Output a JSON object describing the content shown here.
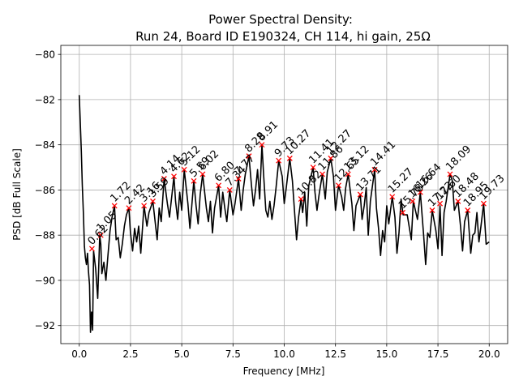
{
  "chart_data": {
    "type": "line",
    "title": "Power Spectral Density:",
    "subtitle": "Run 24, Board ID E190324, CH 114, hi gain, 25Ω",
    "xlabel": "Frequency [MHz]",
    "ylabel": "PSD [dB Full Scale]",
    "xlim": [
      -0.9,
      20.9
    ],
    "ylim": [
      -92.8,
      -79.6
    ],
    "xticks": [
      0.0,
      2.5,
      5.0,
      7.5,
      10.0,
      12.5,
      15.0,
      17.5,
      20.0
    ],
    "xtick_labels": [
      "0.0",
      "2.5",
      "5.0",
      "7.5",
      "10.0",
      "12.5",
      "15.0",
      "17.5",
      "20.0"
    ],
    "yticks": [
      -92,
      -90,
      -88,
      -86,
      -84,
      -82,
      -80
    ],
    "ytick_labels": [
      "−92",
      "−90",
      "−88",
      "−86",
      "−84",
      "−82",
      "−80"
    ],
    "grid": true,
    "series_color": "#000000",
    "marker_color": "#ff0000",
    "series": [
      {
        "x": [
          0.0,
          0.05,
          0.1,
          0.15,
          0.2,
          0.25,
          0.3,
          0.35,
          0.4,
          0.45,
          0.5,
          0.55,
          0.6,
          0.65,
          0.7,
          0.8,
          0.9,
          1.0,
          1.05,
          1.1,
          1.2,
          1.3,
          1.4,
          1.5,
          1.6,
          1.72,
          1.8,
          1.9,
          2.0,
          2.1,
          2.2,
          2.3,
          2.42,
          2.5,
          2.6,
          2.7,
          2.8,
          2.9,
          3.0,
          3.16,
          3.3,
          3.4,
          3.59,
          3.7,
          3.8,
          3.9,
          4.0,
          4.14,
          4.3,
          4.4,
          4.62,
          4.7,
          4.8,
          4.9,
          5.0,
          5.12,
          5.3,
          5.4,
          5.59,
          5.7,
          5.8,
          5.9,
          6.02,
          6.2,
          6.3,
          6.4,
          6.5,
          6.6,
          6.8,
          6.9,
          7.0,
          7.1,
          7.2,
          7.34,
          7.5,
          7.6,
          7.77,
          7.9,
          8.0,
          8.1,
          8.28,
          8.4,
          8.5,
          8.6,
          8.7,
          8.8,
          8.91,
          9.0,
          9.1,
          9.2,
          9.3,
          9.4,
          9.5,
          9.6,
          9.73,
          9.9,
          10.0,
          10.1,
          10.27,
          10.4,
          10.5,
          10.6,
          10.7,
          10.82,
          10.9,
          11.0,
          11.1,
          11.2,
          11.41,
          11.5,
          11.6,
          11.7,
          11.86,
          12.0,
          12.1,
          12.27,
          12.4,
          12.5,
          12.65,
          12.8,
          12.9,
          13.0,
          13.12,
          13.3,
          13.4,
          13.5,
          13.71,
          13.8,
          13.9,
          14.0,
          14.1,
          14.2,
          14.41,
          14.5,
          14.6,
          14.7,
          14.8,
          14.9,
          15.0,
          15.1,
          15.27,
          15.4,
          15.5,
          15.6,
          15.7,
          15.8,
          16.0,
          16.2,
          16.3,
          16.5,
          16.64,
          16.8,
          16.9,
          17.0,
          17.1,
          17.22,
          17.4,
          17.5,
          17.6,
          17.7,
          17.8,
          17.9,
          18.09,
          18.2,
          18.3,
          18.48,
          18.6,
          18.7,
          18.8,
          18.95,
          19.1,
          19.2,
          19.3,
          19.4,
          19.5,
          19.6,
          19.73,
          19.85,
          20.0
        ],
        "y": [
          -81.8,
          -83.0,
          -84.3,
          -85.8,
          -87.0,
          -88.5,
          -89.0,
          -89.3,
          -88.8,
          -89.6,
          -90.2,
          -92.3,
          -91.4,
          -92.2,
          -88.7,
          -89.5,
          -90.8,
          -88.0,
          -88.4,
          -89.7,
          -89.2,
          -90.0,
          -88.9,
          -87.8,
          -87.2,
          -86.7,
          -88.2,
          -88.1,
          -89.0,
          -88.4,
          -87.6,
          -87.1,
          -86.8,
          -87.9,
          -88.7,
          -87.7,
          -88.3,
          -87.6,
          -88.8,
          -86.7,
          -87.6,
          -87.0,
          -86.5,
          -87.4,
          -88.2,
          -86.8,
          -87.4,
          -85.5,
          -86.6,
          -87.2,
          -85.4,
          -86.5,
          -87.3,
          -86.1,
          -86.9,
          -85.1,
          -86.6,
          -87.7,
          -85.6,
          -86.7,
          -87.5,
          -86.2,
          -85.3,
          -86.8,
          -87.4,
          -86.5,
          -87.9,
          -86.8,
          -85.8,
          -87.2,
          -86.1,
          -86.8,
          -87.4,
          -86.0,
          -87.1,
          -86.6,
          -85.5,
          -86.9,
          -86.0,
          -85.3,
          -84.5,
          -85.8,
          -86.7,
          -86.0,
          -85.1,
          -86.4,
          -84.0,
          -85.4,
          -86.9,
          -87.2,
          -86.5,
          -87.3,
          -86.7,
          -85.9,
          -84.7,
          -85.4,
          -86.6,
          -85.9,
          -84.6,
          -85.6,
          -86.9,
          -88.2,
          -87.2,
          -86.4,
          -87.0,
          -86.1,
          -87.6,
          -85.8,
          -85.0,
          -86.1,
          -86.9,
          -86.2,
          -85.3,
          -86.4,
          -85.2,
          -84.6,
          -85.4,
          -86.9,
          -85.8,
          -86.3,
          -86.9,
          -85.9,
          -85.3,
          -86.6,
          -87.8,
          -86.7,
          -86.2,
          -87.3,
          -86.7,
          -85.9,
          -88.0,
          -86.5,
          -85.1,
          -86.8,
          -87.7,
          -88.9,
          -87.8,
          -88.3,
          -86.7,
          -87.5,
          -86.3,
          -87.2,
          -88.8,
          -87.9,
          -86.4,
          -87.1,
          -87.1,
          -88.2,
          -86.5,
          -87.3,
          -86.1,
          -88.0,
          -89.3,
          -87.9,
          -88.1,
          -86.9,
          -87.8,
          -88.6,
          -86.7,
          -88.9,
          -87.0,
          -86.5,
          -85.3,
          -85.6,
          -86.9,
          -86.5,
          -87.6,
          -88.7,
          -87.4,
          -86.9,
          -88.8,
          -88.0,
          -87.9,
          -87.0,
          -88.3,
          -87.6,
          -86.6,
          -88.4,
          -88.3
        ]
      }
    ],
    "peaks": [
      {
        "x": 0.62,
        "y": -88.6,
        "label": "0.62"
      },
      {
        "x": 1.05,
        "y": -88.0,
        "label": "1.05"
      },
      {
        "x": 1.72,
        "y": -86.7,
        "label": "1.72"
      },
      {
        "x": 2.42,
        "y": -86.8,
        "label": "2.42"
      },
      {
        "x": 3.16,
        "y": -86.7,
        "label": "3.16"
      },
      {
        "x": 3.59,
        "y": -86.5,
        "label": "3.59"
      },
      {
        "x": 4.14,
        "y": -85.5,
        "label": "4.14"
      },
      {
        "x": 4.62,
        "y": -85.4,
        "label": "4.62"
      },
      {
        "x": 5.12,
        "y": -85.1,
        "label": "5.12"
      },
      {
        "x": 5.59,
        "y": -85.6,
        "label": "5.59"
      },
      {
        "x": 6.02,
        "y": -85.3,
        "label": "6.02"
      },
      {
        "x": 6.8,
        "y": -85.8,
        "label": "6.80"
      },
      {
        "x": 7.34,
        "y": -86.0,
        "label": "7.34"
      },
      {
        "x": 7.77,
        "y": -85.5,
        "label": "7.77"
      },
      {
        "x": 8.28,
        "y": -84.5,
        "label": "8.28"
      },
      {
        "x": 8.91,
        "y": -84.0,
        "label": "8.91"
      },
      {
        "x": 9.73,
        "y": -84.7,
        "label": "9.73"
      },
      {
        "x": 10.27,
        "y": -84.6,
        "label": "10.27"
      },
      {
        "x": 10.82,
        "y": -86.4,
        "label": "10.82"
      },
      {
        "x": 11.41,
        "y": -85.0,
        "label": "11.41"
      },
      {
        "x": 11.86,
        "y": -85.3,
        "label": "11.86"
      },
      {
        "x": 12.27,
        "y": -84.6,
        "label": "12.27"
      },
      {
        "x": 12.65,
        "y": -85.8,
        "label": "12.65"
      },
      {
        "x": 13.12,
        "y": -85.3,
        "label": "13.12"
      },
      {
        "x": 13.71,
        "y": -86.2,
        "label": "13.71"
      },
      {
        "x": 14.41,
        "y": -85.1,
        "label": "14.41"
      },
      {
        "x": 15.27,
        "y": -86.3,
        "label": "15.27"
      },
      {
        "x": 15.78,
        "y": -87.0,
        "label": "15.78"
      },
      {
        "x": 16.26,
        "y": -86.5,
        "label": "16.26"
      },
      {
        "x": 16.64,
        "y": -86.1,
        "label": "16.64"
      },
      {
        "x": 17.22,
        "y": -86.9,
        "label": "17.22"
      },
      {
        "x": 17.6,
        "y": -86.6,
        "label": "17.60"
      },
      {
        "x": 18.09,
        "y": -85.3,
        "label": "18.09"
      },
      {
        "x": 18.48,
        "y": -86.5,
        "label": "18.48"
      },
      {
        "x": 18.95,
        "y": -86.9,
        "label": "18.95"
      },
      {
        "x": 19.73,
        "y": -86.6,
        "label": "19.73"
      }
    ]
  }
}
